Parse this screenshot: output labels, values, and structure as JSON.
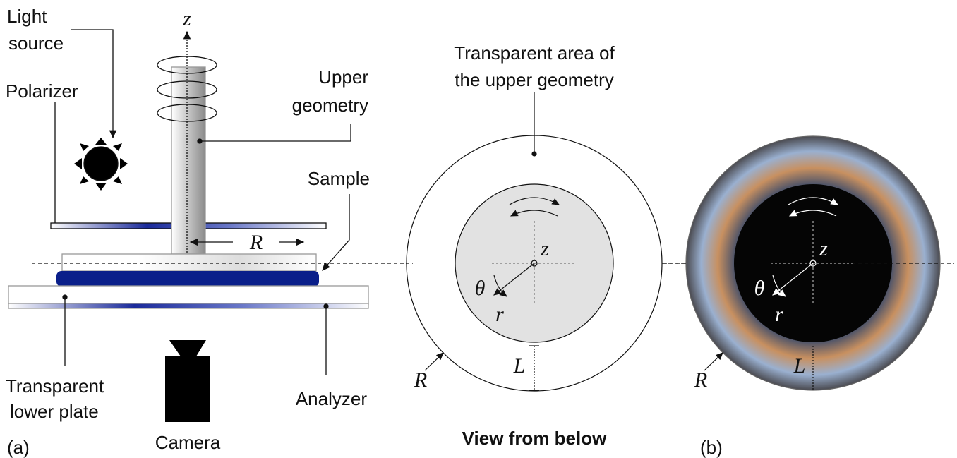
{
  "panel_a": {
    "light_source": [
      "Light",
      "source"
    ],
    "polarizer": "Polarizer",
    "axis_z": "z",
    "upper_geometry": [
      "Upper",
      "geometry"
    ],
    "sample": "Sample",
    "radius": "R",
    "lower_plate": [
      "Transparent",
      "lower plate"
    ],
    "analyzer": "Analyzer",
    "camera": "Camera",
    "tag": "(a)"
  },
  "view_from_below": {
    "annotation": [
      "Transparent area of",
      "the upper geometry"
    ],
    "axis_z": "z",
    "theta": "θ",
    "r": "r",
    "radius": "R",
    "gap": "L",
    "caption": "View from below"
  },
  "panel_b": {
    "axis_z": "z",
    "theta": "θ",
    "r": "r",
    "radius": "R",
    "gap": "L",
    "tag": "(b)"
  }
}
